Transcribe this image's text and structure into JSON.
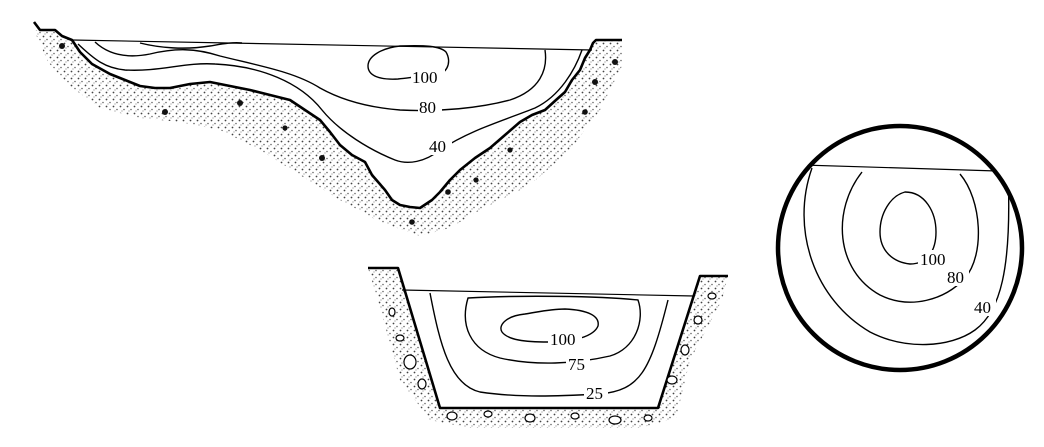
{
  "natural_channel": {
    "contour_labels": [
      "100",
      "80",
      "40"
    ]
  },
  "trapezoidal_channel": {
    "contour_labels": [
      "100",
      "75",
      "25"
    ]
  },
  "circular_pipe": {
    "contour_labels": [
      "100",
      "80",
      "40"
    ]
  },
  "colors": {
    "line": "#000000",
    "background": "#ffffff",
    "soil_stipple": "#555555"
  }
}
